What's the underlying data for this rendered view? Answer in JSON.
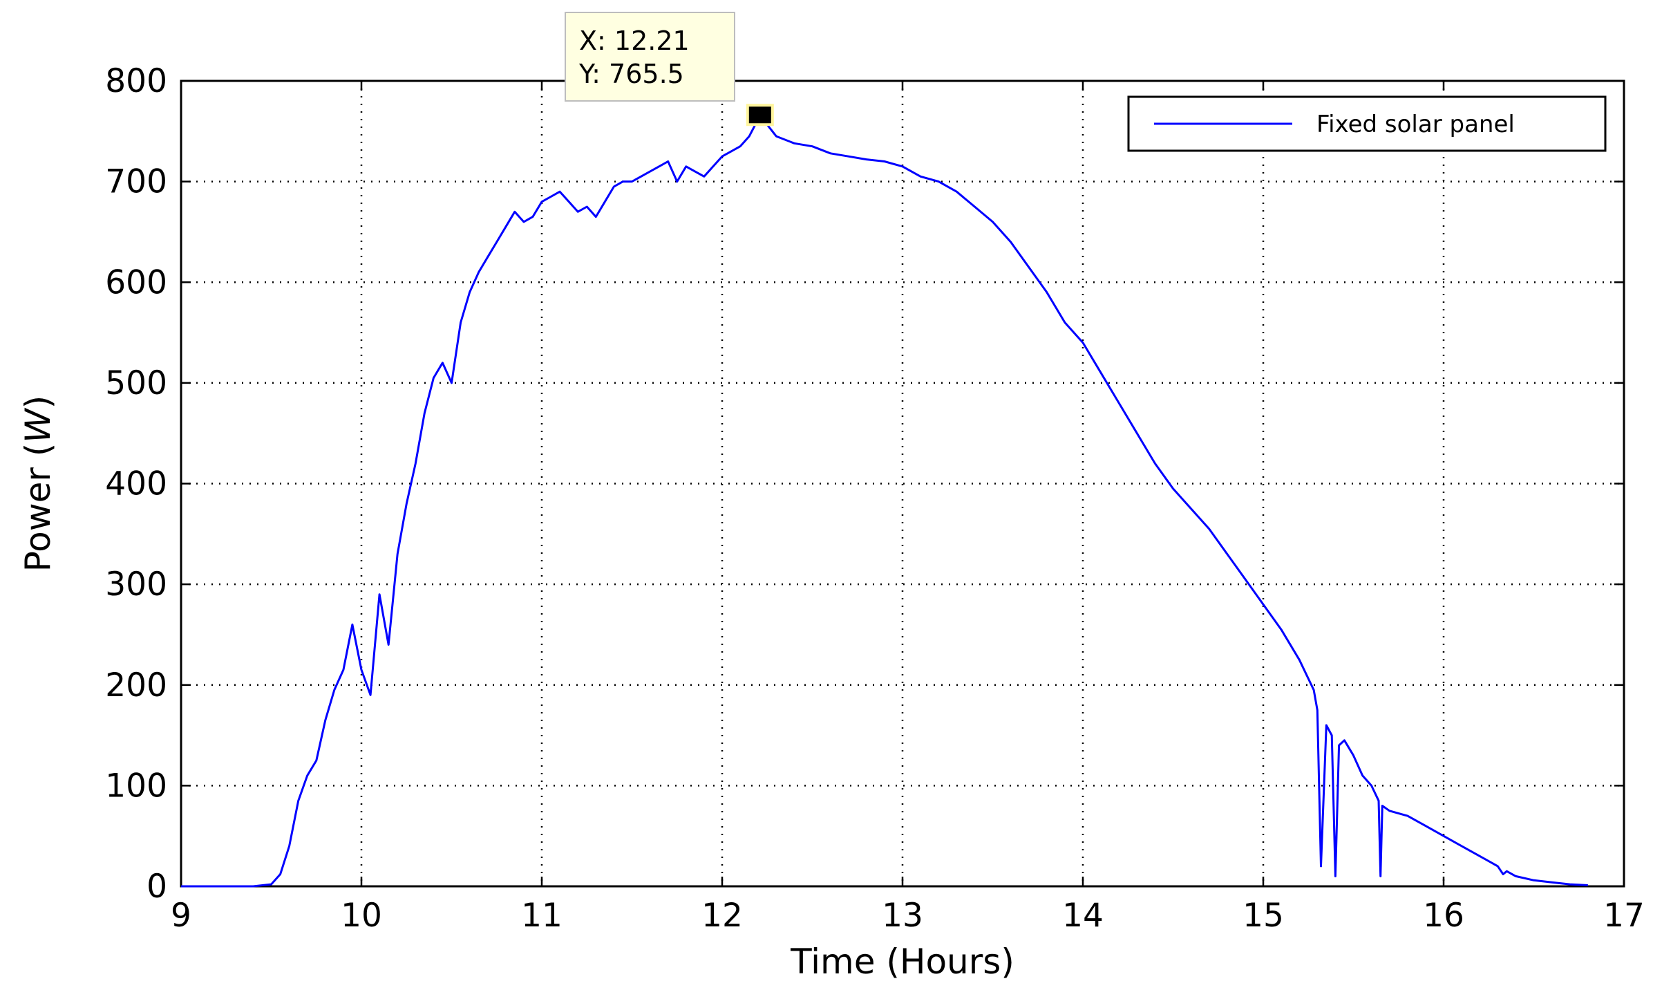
{
  "chart_data": {
    "type": "line",
    "xlabel": "Time (Hours)",
    "ylabel_main": "Power (",
    "ylabel_unit": "W",
    "ylabel_close": ")",
    "xlim": [
      9,
      17
    ],
    "ylim": [
      0,
      800
    ],
    "x_ticks": [
      9,
      10,
      11,
      12,
      13,
      14,
      15,
      16,
      17
    ],
    "y_ticks": [
      0,
      100,
      200,
      300,
      400,
      500,
      600,
      700,
      800
    ],
    "grid": true,
    "grid_style": "dotted",
    "legend_position": "top-right",
    "series": [
      {
        "name": "Fixed solar panel",
        "color": "#0000ff",
        "x": [
          9.0,
          9.2,
          9.4,
          9.5,
          9.55,
          9.6,
          9.65,
          9.7,
          9.75,
          9.8,
          9.85,
          9.9,
          9.95,
          10.0,
          10.05,
          10.1,
          10.15,
          10.2,
          10.25,
          10.3,
          10.35,
          10.4,
          10.45,
          10.5,
          10.55,
          10.6,
          10.65,
          10.7,
          10.75,
          10.8,
          10.85,
          10.9,
          10.95,
          11.0,
          11.05,
          11.1,
          11.15,
          11.2,
          11.25,
          11.3,
          11.35,
          11.4,
          11.45,
          11.5,
          11.55,
          11.6,
          11.65,
          11.7,
          11.75,
          11.8,
          11.85,
          11.9,
          11.95,
          12.0,
          12.05,
          12.1,
          12.15,
          12.21,
          12.3,
          12.4,
          12.5,
          12.6,
          12.7,
          12.8,
          12.9,
          13.0,
          13.1,
          13.2,
          13.3,
          13.4,
          13.5,
          13.6,
          13.7,
          13.8,
          13.9,
          14.0,
          14.1,
          14.2,
          14.3,
          14.4,
          14.5,
          14.6,
          14.7,
          14.8,
          14.9,
          15.0,
          15.1,
          15.2,
          15.28,
          15.3,
          15.32,
          15.35,
          15.38,
          15.4,
          15.42,
          15.45,
          15.5,
          15.55,
          15.6,
          15.64,
          15.65,
          15.66,
          15.7,
          15.8,
          15.9,
          16.0,
          16.1,
          16.2,
          16.3,
          16.33,
          16.35,
          16.4,
          16.5,
          16.6,
          16.7,
          16.8
        ],
        "y": [
          0,
          0,
          0,
          2,
          12,
          40,
          85,
          110,
          125,
          165,
          195,
          215,
          260,
          215,
          190,
          290,
          240,
          330,
          380,
          420,
          470,
          505,
          520,
          500,
          560,
          590,
          610,
          625,
          640,
          655,
          670,
          660,
          665,
          680,
          685,
          690,
          680,
          670,
          675,
          665,
          680,
          695,
          700,
          700,
          705,
          710,
          715,
          720,
          700,
          715,
          710,
          705,
          715,
          725,
          730,
          735,
          745,
          765.5,
          745,
          738,
          735,
          728,
          725,
          722,
          720,
          715,
          705,
          700,
          690,
          675,
          660,
          640,
          615,
          590,
          560,
          540,
          510,
          480,
          450,
          420,
          395,
          375,
          355,
          330,
          305,
          280,
          255,
          225,
          195,
          175,
          20,
          160,
          150,
          10,
          140,
          145,
          130,
          110,
          100,
          85,
          10,
          80,
          75,
          70,
          60,
          50,
          40,
          30,
          20,
          12,
          15,
          10,
          6,
          4,
          2,
          1
        ]
      }
    ],
    "datatip": {
      "x_label": "X: 12.21",
      "y_label": "Y: 765.5",
      "x": 12.21,
      "y": 765.5
    }
  }
}
